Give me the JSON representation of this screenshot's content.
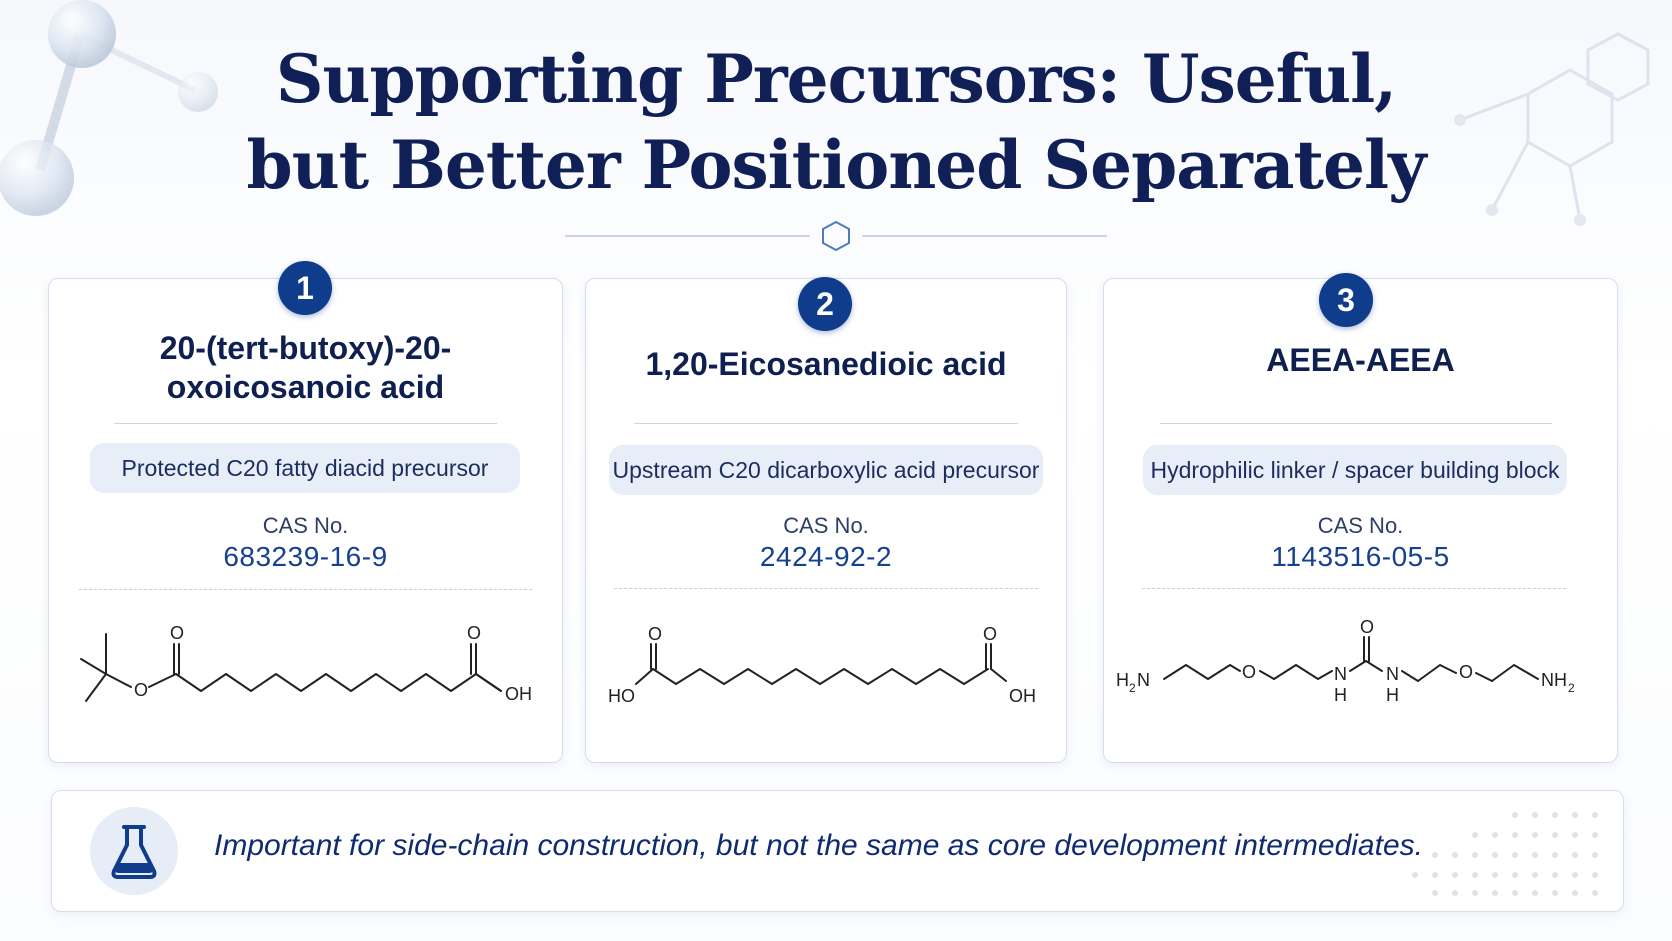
{
  "title": {
    "line1": "Supporting  Precursors: Useful,",
    "line2": "but Better  Positioned Separately"
  },
  "icons": {
    "divider": "hexagon-icon",
    "note": "flask-icon",
    "background": "molecule-icon"
  },
  "colors": {
    "navy": "#102056",
    "badge": "#0f3d8c",
    "cas": "#16418f",
    "pill": "#e8eef8"
  },
  "cards": [
    {
      "number": "1",
      "name_line1": "20-(tert-butoxy)-20-",
      "name_line2": "oxoicosanoic acid",
      "role": "Protected C20 fatty diacid precursor",
      "cas_label": "CAS No.",
      "cas": "683239-16-9",
      "structure": {
        "atom_o1": "O",
        "atom_o2": "O",
        "atom_o3": "O",
        "atom_oh": "OH"
      }
    },
    {
      "number": "2",
      "name": "1,20-Eicosanedioic acid",
      "role": "Upstream C20 dicarboxylic acid precursor",
      "cas_label": "CAS No.",
      "cas": "2424-92-2",
      "structure": {
        "atom_o1": "O",
        "atom_o2": "O",
        "atom_ho": "HO",
        "atom_oh": "OH"
      }
    },
    {
      "number": "3",
      "name": "AEEA-AEEA",
      "role": "Hydrophilic linker / spacer building block",
      "cas_label": "CAS No.",
      "cas": "1143516-05-5",
      "structure": {
        "atom_h2n": "H",
        "sub_2a": "2",
        "atom_n_left": "N",
        "atom_o1": "O",
        "atom_nh1_n": "N",
        "atom_nh1_h": "H",
        "atom_carbonyl_o": "O",
        "atom_nh2_n": "N",
        "atom_nh2_h": "H",
        "atom_o2": "O",
        "atom_nh2": "NH",
        "sub_2b": "2"
      }
    }
  ],
  "note": "Important for side-chain construction, but not the same as core development intermediates."
}
